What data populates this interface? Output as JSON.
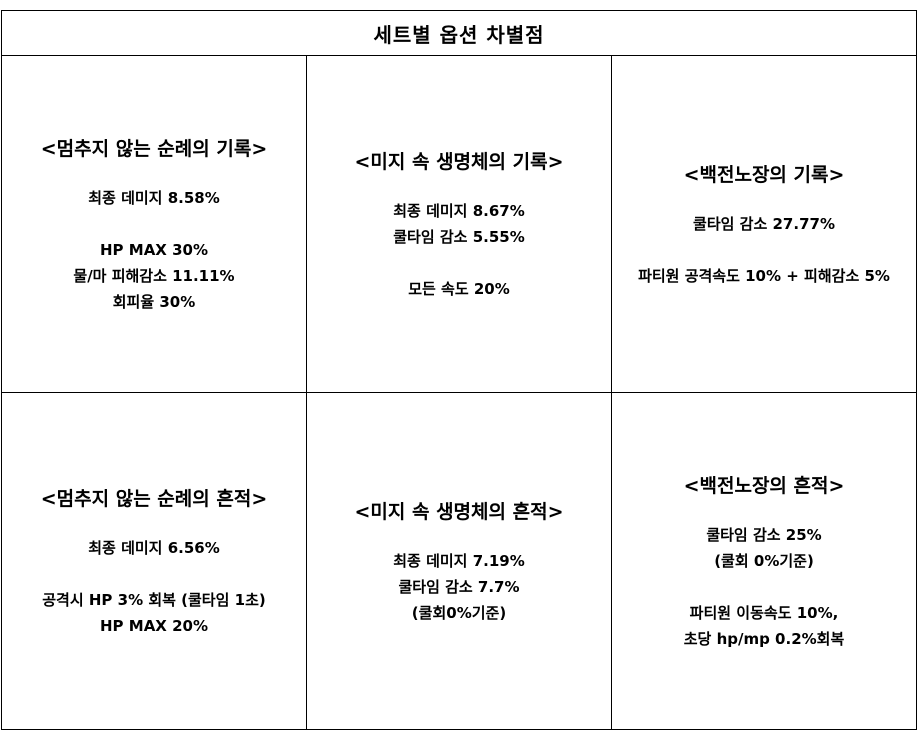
{
  "header": {
    "title": "세트별 옵션 차별점"
  },
  "rows": [
    [
      {
        "title": "<멈추지 않는 순례의 기록>",
        "groups": [
          [
            "최종 데미지 8.58%"
          ],
          [
            "HP MAX 30%",
            "물/마 피해감소 11.11%",
            "회피율 30%"
          ]
        ]
      },
      {
        "title": "<미지 속 생명체의 기록>",
        "groups": [
          [
            "최종 데미지 8.67%",
            "쿨타임 감소 5.55%"
          ],
          [
            "모든 속도 20%"
          ]
        ]
      },
      {
        "title": "<백전노장의 기록>",
        "groups": [
          [
            "쿨타임 감소 27.77%"
          ],
          [
            "파티원 공격속도 10% + 피해감소 5%"
          ]
        ]
      }
    ],
    [
      {
        "title": "<멈추지 않는 순례의 흔적>",
        "groups": [
          [
            "최종 데미지 6.56%"
          ],
          [
            "공격시 HP 3% 회복 (쿨타임 1초)",
            "HP MAX 20%"
          ]
        ]
      },
      {
        "title": "<미지 속 생명체의 흔적>",
        "groups": [
          [
            "최종 데미지 7.19%",
            "쿨타임 감소 7.7%",
            "(쿨회0%기준)"
          ]
        ]
      },
      {
        "title": "<백전노장의 흔적>",
        "groups": [
          [
            "쿨타임 감소 25%",
            "(쿨회 0%기준)"
          ],
          [
            "파티원 이동속도 10%,",
            "초당 hp/mp 0.2%회복"
          ]
        ]
      }
    ]
  ]
}
